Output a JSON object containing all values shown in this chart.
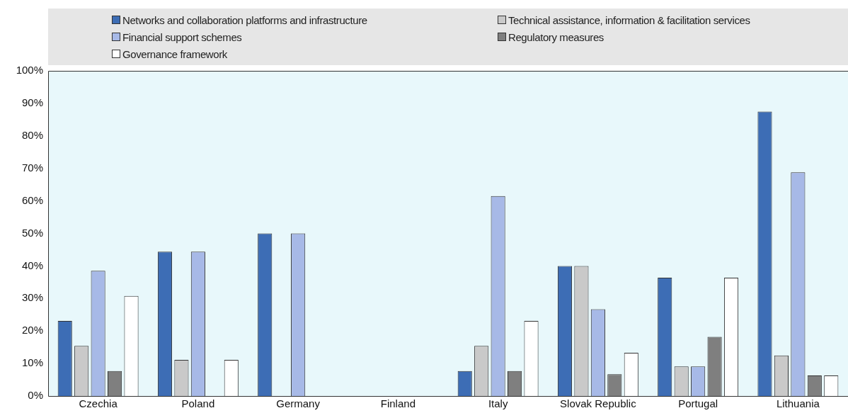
{
  "chart_data": {
    "type": "bar",
    "categories": [
      "Czechia",
      "Poland",
      "Germany",
      "Finland",
      "Italy",
      "Slovak Republic",
      "Portugal",
      "Lithuania"
    ],
    "series": [
      {
        "name": "Networks and collaboration platforms and infrastructure",
        "color": "#3d6db5",
        "values": [
          23.1,
          44.4,
          50,
          0,
          7.7,
          40,
          36.4,
          87.5
        ]
      },
      {
        "name": "Technical assistance, information & facilitation services",
        "color": "#c9c9c9",
        "values": [
          15.4,
          11.1,
          0,
          0,
          15.4,
          40,
          9.1,
          12.5
        ]
      },
      {
        "name": "Financial support schemes",
        "color": "#a7b9e7",
        "values": [
          38.5,
          44.4,
          50,
          0,
          61.5,
          26.7,
          9.1,
          68.8
        ]
      },
      {
        "name": "Regulatory measures",
        "color": "#7f7f7f",
        "values": [
          7.7,
          0,
          0,
          0,
          7.7,
          6.7,
          18.2,
          6.3
        ]
      },
      {
        "name": "Governance framework",
        "color": "#ffffff",
        "values": [
          30.8,
          11.1,
          0,
          0,
          23.1,
          13.3,
          36.4,
          6.3
        ]
      }
    ],
    "ylim": [
      0,
      100
    ],
    "yticks": [
      {
        "value": 0,
        "label": "0%"
      },
      {
        "value": 10,
        "label": "10%"
      },
      {
        "value": 20,
        "label": "20%"
      },
      {
        "value": 30,
        "label": "30%"
      },
      {
        "value": 40,
        "label": "40%"
      },
      {
        "value": 50,
        "label": "50%"
      },
      {
        "value": 60,
        "label": "60%"
      },
      {
        "value": 70,
        "label": "70%"
      },
      {
        "value": 80,
        "label": "80%"
      },
      {
        "value": 90,
        "label": "90%"
      },
      {
        "value": 100,
        "label": "100%"
      }
    ],
    "grid": false,
    "legend": "top"
  }
}
